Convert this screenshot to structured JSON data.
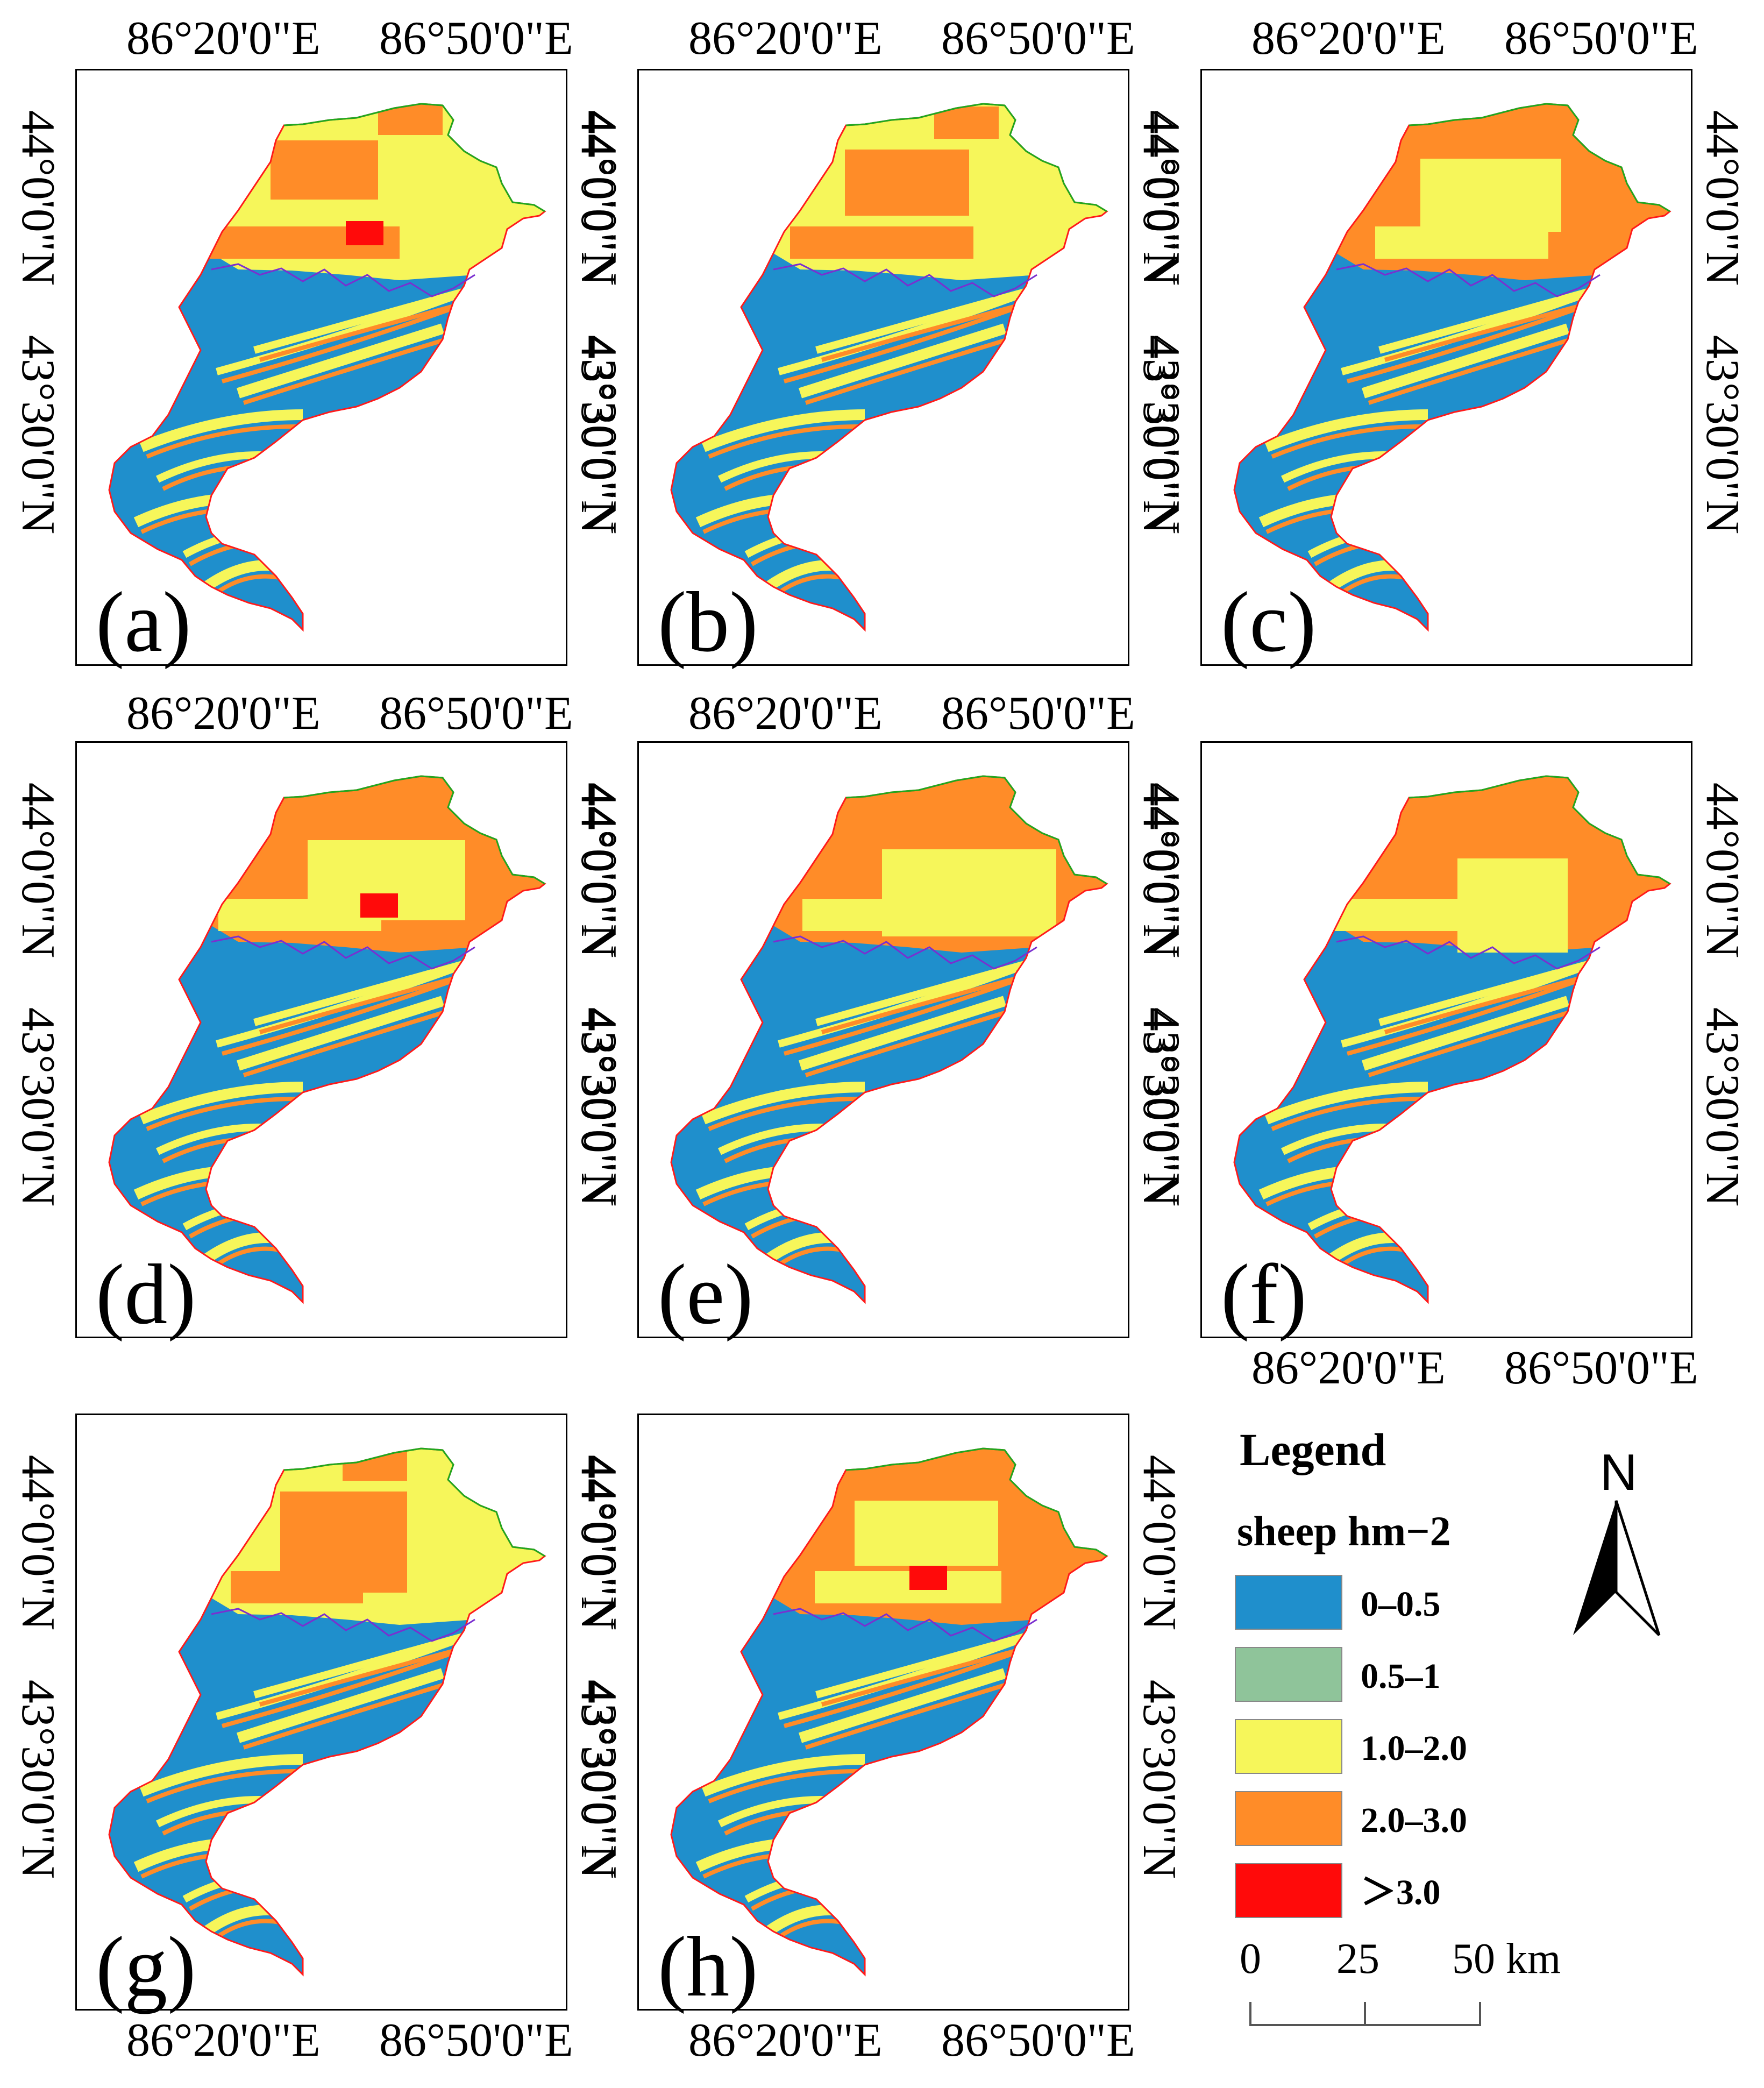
{
  "panels": [
    {
      "label": "(a)",
      "lon_ticks": [
        "86°20'0\"E",
        "86°50'0\"E"
      ],
      "lat_ticks": [
        "44°0'0\"N",
        "43°30'0\"N"
      ]
    },
    {
      "label": "(b)",
      "lon_ticks": [
        "86°20'0\"E",
        "86°50'0\"E"
      ],
      "lat_ticks": [
        "44°0'0\"N",
        "43°30'0\"N"
      ]
    },
    {
      "label": "(c)",
      "lon_ticks": [
        "86°20'0\"E",
        "86°50'0\"E"
      ],
      "lat_ticks": [
        "44°0'0\"N",
        "43°30'0\"N"
      ]
    },
    {
      "label": "(d)",
      "lon_ticks": [
        "86°20'0\"E",
        "86°50'0\"E"
      ],
      "lat_ticks": [
        "44°0'0\"N",
        "43°30'0\"N"
      ]
    },
    {
      "label": "(e)",
      "lon_ticks": [
        "86°20'0\"E",
        "86°50'0\"E"
      ],
      "lat_ticks": [
        "44°0'0\"N",
        "43°30'0\"N"
      ]
    },
    {
      "label": "(f)",
      "lon_ticks": [
        "86°20'0\"E",
        "86°50'0\"E"
      ],
      "lat_ticks": [
        "44°0'0\"N",
        "43°30'0\"N"
      ]
    },
    {
      "label": "(g)",
      "lon_ticks": [
        "86°20'0\"E",
        "86°50'0\"E"
      ],
      "lat_ticks": [
        "44°0'0\"N",
        "43°30'0\"N"
      ]
    },
    {
      "label": "(h)",
      "lon_ticks": [
        "86°20'0\"E",
        "86°50'0\"E"
      ],
      "lat_ticks": [
        "44°0'0\"N",
        "43°30'0\"N"
      ]
    }
  ],
  "legend": {
    "title": "Legend",
    "subtitle": "sheep hm−2",
    "classes": [
      {
        "label": "0–0.5",
        "color": "#1f8fcc"
      },
      {
        "label": "0.5–1",
        "color": "#8fc49a"
      },
      {
        "label": "1.0–2.0",
        "color": "#f6f65a"
      },
      {
        "label": "2.0–3.0",
        "color": "#ff8c28"
      },
      {
        "label": "＞3.0",
        "color": "#ff0a0a"
      }
    ]
  },
  "north_arrow": {
    "label": "N"
  },
  "scale_bar": {
    "ticks": [
      "0",
      "25",
      "50 km"
    ]
  },
  "colors": {
    "boundary_outer": "#ff1a1a",
    "boundary_north": "#1fa81f",
    "boundary_inner": "#7a2fd0"
  }
}
